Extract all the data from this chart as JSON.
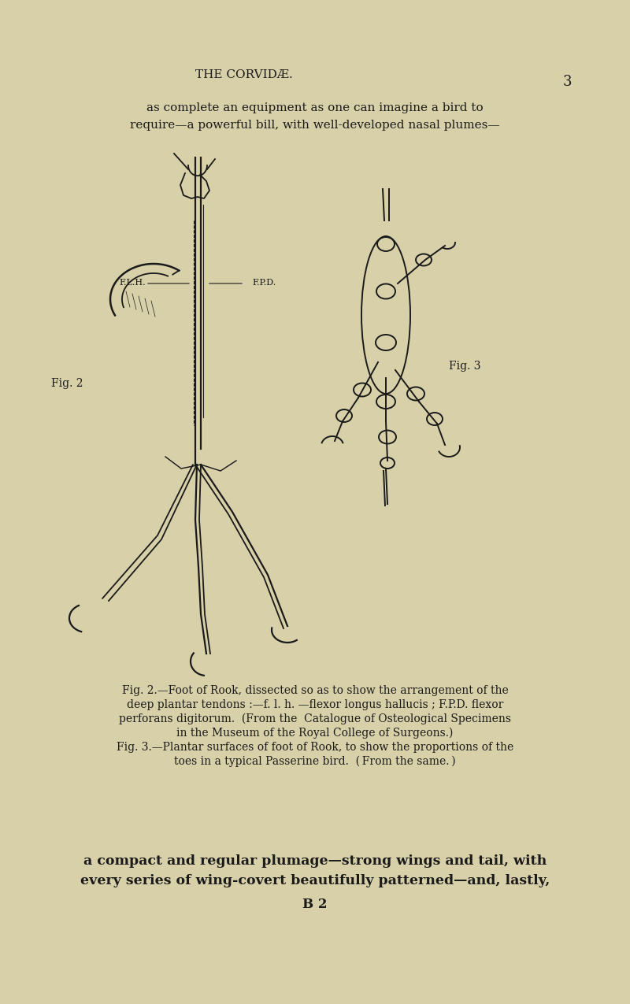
{
  "bg_color": "#d8d0a8",
  "text_color": "#1a1a1a",
  "title": "THE CORVIDÆ.",
  "page_number": "3",
  "top_text_line1": "as complete an equipment as one can imagine a bird to",
  "top_text_line2": "require—a powerful bill, with well-developed nasal plumes—",
  "fig2_label": "Fig. 2",
  "fig3_label": "Fig. 3",
  "fig2_annotation_flh": "F.L.H.",
  "fig2_annotation_fpd": "F.P.D.",
  "caption_line1": "Fig. 2.—Foot of Rook, dissected so as to show the arrangement of the",
  "caption_line2": "deep plantar tendons :—f. l. h. —ﬂexor longus hallucis ; F.P.D. ﬂexor",
  "caption_line3": "perforans digitorum.  (From the  Catalogue of Osteological Specimens",
  "caption_line4": "in the Museum of the Royal College of Surgeons.)",
  "caption_line5": "Fig. 3.—Plantar surfaces of foot of Rook, to show the proportions of the",
  "caption_line6": "toes in a typical Passerine bird.  ( From the same. )",
  "bottom_text_line1": "a compact and regular plumage—strong wings and tail, with",
  "bottom_text_line2": "every series of wing-covert beautifully patterned—and, lastly,",
  "bottom_text_line3": "B 2",
  "fig_width": 8.0,
  "fig_height": 12.75
}
